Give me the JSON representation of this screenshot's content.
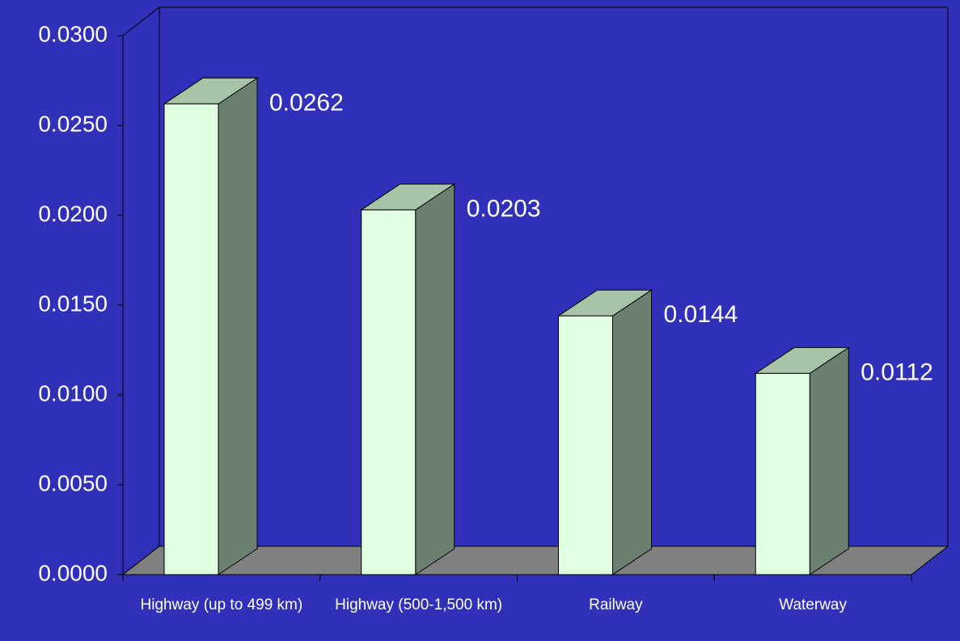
{
  "chart_data": {
    "type": "bar3d",
    "categories": [
      "Highway (up to 499 km)",
      "Highway (500-1,500 km)",
      "Railway",
      "Waterway"
    ],
    "values": [
      0.0262,
      0.0203,
      0.0144,
      0.0112
    ],
    "ylim": [
      0,
      0.03
    ],
    "yticks": [
      {
        "value": 0,
        "label": "0.0000"
      },
      {
        "value": 0.005,
        "label": "0.0050"
      },
      {
        "value": 0.01,
        "label": "0.0100"
      },
      {
        "value": 0.015,
        "label": "0.0150"
      },
      {
        "value": 0.02,
        "label": "0.0200"
      },
      {
        "value": 0.025,
        "label": "0.0250"
      },
      {
        "value": 0.03,
        "label": "0.0300"
      }
    ],
    "color": "#e0ffe0",
    "background": "#3030b8",
    "floor_color": "#808080"
  }
}
